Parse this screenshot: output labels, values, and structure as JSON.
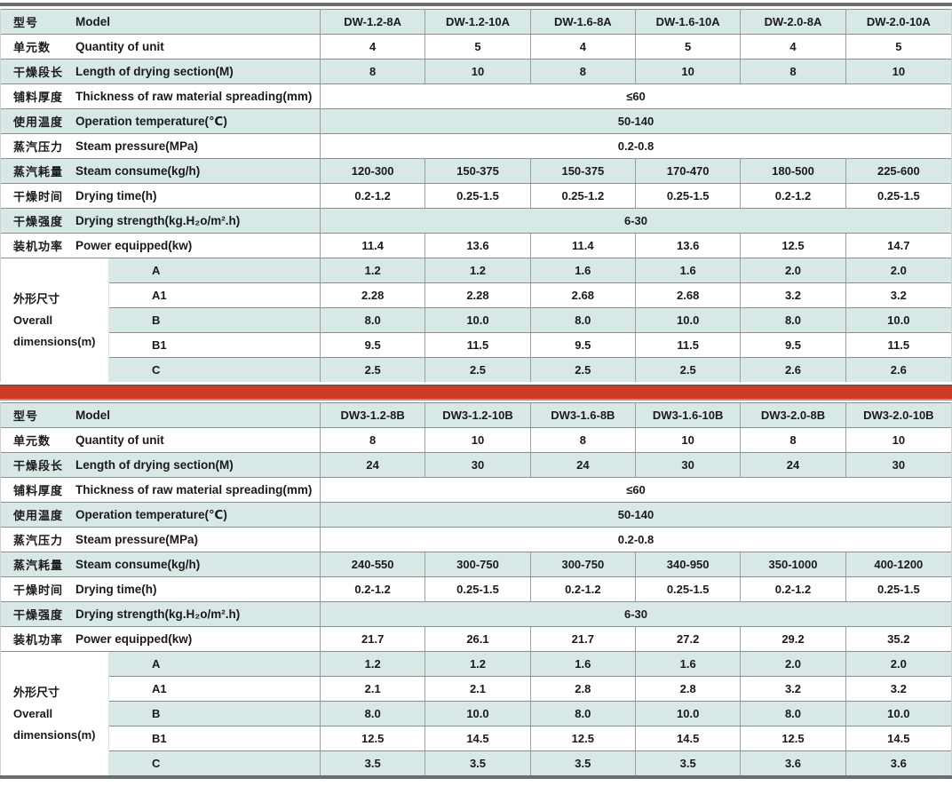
{
  "colors": {
    "row_blue": "#d8e8e7",
    "row_white": "#ffffff",
    "h_border": "#8e8e8e",
    "v_border": "#9a9f9f",
    "frame_bar": "#6d6d6d",
    "divider_red": "#ce3b27"
  },
  "chart_data": {
    "type": "table",
    "note": "two stacked specification tables separated by red divider"
  },
  "tables": [
    {
      "key": "dw-a-series",
      "header": {
        "key": "model",
        "zh": "型号",
        "en": "Model",
        "models": [
          "DW-1.2-8A",
          "DW-1.2-10A",
          "DW-1.6-8A",
          "DW-1.6-10A",
          "DW-2.0-8A",
          "DW-2.0-10A"
        ]
      },
      "rows": [
        {
          "key": "quantity-of-unit",
          "zh": "单元数",
          "en": "Quantity of unit",
          "values": [
            "4",
            "5",
            "4",
            "5",
            "4",
            "5"
          ]
        },
        {
          "key": "length-of-drying-section",
          "zh": "干燥段长",
          "en": "Length of drying section(M)",
          "values": [
            "8",
            "10",
            "8",
            "10",
            "8",
            "10"
          ]
        },
        {
          "key": "thickness-of-spreading",
          "zh": "铺料厚度",
          "en": "Thickness of raw material spreading(mm)",
          "merged": "≤60"
        },
        {
          "key": "operation-temperature",
          "zh": "使用温度",
          "en": "Operation temperature(℃)",
          "merged": "50-140"
        },
        {
          "key": "steam-pressure",
          "zh": "蒸汽压力",
          "en": "Steam pressure(MPa)",
          "merged": "0.2-0.8"
        },
        {
          "key": "steam-consume",
          "zh": "蒸汽耗量",
          "en": "Steam consume(kg/h)",
          "values": [
            "120-300",
            "150-375",
            "150-375",
            "170-470",
            "180-500",
            "225-600"
          ]
        },
        {
          "key": "drying-time",
          "zh": "干燥时间",
          "en": "Drying time(h)",
          "values": [
            "0.2-1.2",
            "0.25-1.5",
            "0.25-1.2",
            "0.25-1.5",
            "0.2-1.2",
            "0.25-1.5"
          ]
        },
        {
          "key": "drying-strength",
          "zh": "干燥强度",
          "en": "Drying strength(kg.H₂o/m².h)",
          "merged": "6-30"
        },
        {
          "key": "power-equipped",
          "zh": "装机功率",
          "en": "Power equipped(kw)",
          "values": [
            "11.4",
            "13.6",
            "11.4",
            "13.6",
            "12.5",
            "14.7"
          ]
        }
      ],
      "dimensions": {
        "zh": "外形尺寸",
        "en_line1": "Overall",
        "en_line2": "dimensions(m)",
        "rows": [
          {
            "label": "A",
            "values": [
              "1.2",
              "1.2",
              "1.6",
              "1.6",
              "2.0",
              "2.0"
            ]
          },
          {
            "label": "A1",
            "values": [
              "2.28",
              "2.28",
              "2.68",
              "2.68",
              "3.2",
              "3.2"
            ]
          },
          {
            "label": "B",
            "values": [
              "8.0",
              "10.0",
              "8.0",
              "10.0",
              "8.0",
              "10.0"
            ]
          },
          {
            "label": "B1",
            "values": [
              "9.5",
              "11.5",
              "9.5",
              "11.5",
              "9.5",
              "11.5"
            ]
          },
          {
            "label": "C",
            "values": [
              "2.5",
              "2.5",
              "2.5",
              "2.5",
              "2.6",
              "2.6"
            ]
          }
        ]
      }
    },
    {
      "key": "dw3-b-series",
      "header": {
        "key": "model",
        "zh": "型号",
        "en": "Model",
        "models": [
          "DW3-1.2-8B",
          "DW3-1.2-10B",
          "DW3-1.6-8B",
          "DW3-1.6-10B",
          "DW3-2.0-8B",
          "DW3-2.0-10B"
        ]
      },
      "rows": [
        {
          "key": "quantity-of-unit",
          "zh": "单元数",
          "en": "Quantity of unit",
          "values": [
            "8",
            "10",
            "8",
            "10",
            "8",
            "10"
          ]
        },
        {
          "key": "length-of-drying-section",
          "zh": "干燥段长",
          "en": "Length of drying section(M)",
          "values": [
            "24",
            "30",
            "24",
            "30",
            "24",
            "30"
          ]
        },
        {
          "key": "thickness-of-spreading",
          "zh": "铺料厚度",
          "en": "Thickness of raw material spreading(mm)",
          "merged": "≤60"
        },
        {
          "key": "operation-temperature",
          "zh": "使用温度",
          "en": "Operation temperature(℃)",
          "merged": "50-140"
        },
        {
          "key": "steam-pressure",
          "zh": "蒸汽压力",
          "en": "Steam pressure(MPa)",
          "merged": "0.2-0.8"
        },
        {
          "key": "steam-consume",
          "zh": "蒸汽耗量",
          "en": "Steam consume(kg/h)",
          "values": [
            "240-550",
            "300-750",
            "300-750",
            "340-950",
            "350-1000",
            "400-1200"
          ]
        },
        {
          "key": "drying-time",
          "zh": "干燥时间",
          "en": "Drying time(h)",
          "values": [
            "0.2-1.2",
            "0.25-1.5",
            "0.2-1.2",
            "0.25-1.5",
            "0.2-1.2",
            "0.25-1.5"
          ]
        },
        {
          "key": "drying-strength",
          "zh": "干燥强度",
          "en": "Drying strength(kg.H₂o/m².h)",
          "merged": "6-30"
        },
        {
          "key": "power-equipped",
          "zh": "装机功率",
          "en": "Power equipped(kw)",
          "values": [
            "21.7",
            "26.1",
            "21.7",
            "27.2",
            "29.2",
            "35.2"
          ]
        }
      ],
      "dimensions": {
        "zh": "外形尺寸",
        "en_line1": "Overall",
        "en_line2": "dimensions(m)",
        "rows": [
          {
            "label": "A",
            "values": [
              "1.2",
              "1.2",
              "1.6",
              "1.6",
              "2.0",
              "2.0"
            ]
          },
          {
            "label": "A1",
            "values": [
              "2.1",
              "2.1",
              "2.8",
              "2.8",
              "3.2",
              "3.2"
            ]
          },
          {
            "label": "B",
            "values": [
              "8.0",
              "10.0",
              "8.0",
              "10.0",
              "8.0",
              "10.0"
            ]
          },
          {
            "label": "B1",
            "values": [
              "12.5",
              "14.5",
              "12.5",
              "14.5",
              "12.5",
              "14.5"
            ]
          },
          {
            "label": "C",
            "values": [
              "3.5",
              "3.5",
              "3.5",
              "3.5",
              "3.6",
              "3.6"
            ]
          }
        ]
      }
    }
  ]
}
